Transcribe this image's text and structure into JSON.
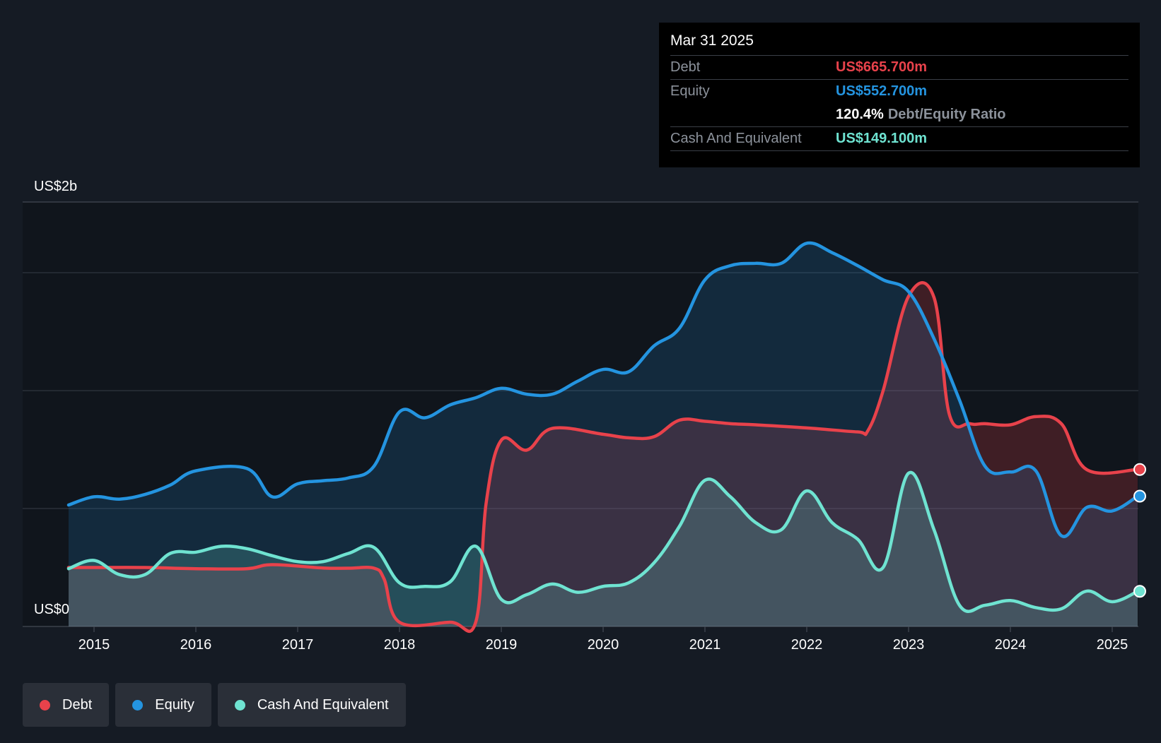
{
  "tooltip": {
    "date": "Mar 31 2025",
    "debt_label": "Debt",
    "debt_value": "US$665.700m",
    "equity_label": "Equity",
    "equity_value": "US$552.700m",
    "ratio_value": "120.4%",
    "ratio_label": "Debt/Equity Ratio",
    "cash_label": "Cash And Equivalent",
    "cash_value": "US$149.100m"
  },
  "legend": {
    "debt": "Debt",
    "equity": "Equity",
    "cash": "Cash And Equivalent"
  },
  "colors": {
    "debt": "#e8424b",
    "equity": "#2494e0",
    "cash": "#6fe3d1",
    "background": "#151b24",
    "plot_background": "#10151c"
  },
  "chart_data": {
    "type": "area",
    "ylabel_top": "US$2b",
    "ylabel_bottom": "US$0",
    "ylim": [
      0,
      1800
    ],
    "x_ticks": [
      "2015",
      "2016",
      "2017",
      "2018",
      "2019",
      "2020",
      "2021",
      "2022",
      "2023",
      "2024",
      "2025"
    ],
    "gridlines_musd": [
      500,
      1000,
      1500
    ],
    "series": [
      {
        "name": "Debt",
        "points": [
          [
            2014.75,
            250
          ],
          [
            2015.0,
            250
          ],
          [
            2015.5,
            250
          ],
          [
            2016.0,
            245
          ],
          [
            2016.5,
            245
          ],
          [
            2016.75,
            262
          ],
          [
            2017.25,
            248
          ],
          [
            2017.5,
            247
          ],
          [
            2017.75,
            247
          ],
          [
            2017.85,
            200
          ],
          [
            2018.0,
            18
          ],
          [
            2018.5,
            18
          ],
          [
            2018.75,
            20
          ],
          [
            2018.85,
            520
          ],
          [
            2019.0,
            790
          ],
          [
            2019.25,
            748
          ],
          [
            2019.5,
            840
          ],
          [
            2020.0,
            815
          ],
          [
            2020.25,
            800
          ],
          [
            2020.5,
            805
          ],
          [
            2020.75,
            875
          ],
          [
            2021.0,
            870
          ],
          [
            2021.25,
            860
          ],
          [
            2021.5,
            855
          ],
          [
            2022.0,
            842
          ],
          [
            2022.5,
            825
          ],
          [
            2022.6,
            830
          ],
          [
            2022.75,
            1000
          ],
          [
            2023.0,
            1400
          ],
          [
            2023.25,
            1395
          ],
          [
            2023.4,
            900
          ],
          [
            2023.6,
            860
          ],
          [
            2023.75,
            860
          ],
          [
            2024.0,
            855
          ],
          [
            2024.25,
            890
          ],
          [
            2024.5,
            860
          ],
          [
            2024.75,
            665
          ],
          [
            2025.25,
            665.7
          ]
        ]
      },
      {
        "name": "Equity",
        "points": [
          [
            2014.75,
            515
          ],
          [
            2015.0,
            550
          ],
          [
            2015.25,
            540
          ],
          [
            2015.5,
            560
          ],
          [
            2015.75,
            600
          ],
          [
            2016.0,
            660
          ],
          [
            2016.5,
            670
          ],
          [
            2016.75,
            550
          ],
          [
            2017.0,
            605
          ],
          [
            2017.25,
            618
          ],
          [
            2017.5,
            630
          ],
          [
            2017.75,
            680
          ],
          [
            2018.0,
            910
          ],
          [
            2018.25,
            885
          ],
          [
            2018.5,
            940
          ],
          [
            2018.75,
            970
          ],
          [
            2019.0,
            1010
          ],
          [
            2019.25,
            985
          ],
          [
            2019.5,
            985
          ],
          [
            2019.75,
            1040
          ],
          [
            2020.0,
            1090
          ],
          [
            2020.25,
            1080
          ],
          [
            2020.5,
            1190
          ],
          [
            2020.75,
            1265
          ],
          [
            2021.0,
            1470
          ],
          [
            2021.25,
            1530
          ],
          [
            2021.5,
            1540
          ],
          [
            2021.75,
            1540
          ],
          [
            2022.0,
            1625
          ],
          [
            2022.25,
            1585
          ],
          [
            2022.5,
            1530
          ],
          [
            2022.75,
            1470
          ],
          [
            2023.0,
            1420
          ],
          [
            2023.25,
            1220
          ],
          [
            2023.5,
            960
          ],
          [
            2023.75,
            680
          ],
          [
            2024.0,
            655
          ],
          [
            2024.25,
            660
          ],
          [
            2024.5,
            385
          ],
          [
            2024.75,
            505
          ],
          [
            2025.0,
            490
          ],
          [
            2025.25,
            552.7
          ]
        ]
      },
      {
        "name": "Cash And Equivalent",
        "points": [
          [
            2014.75,
            245
          ],
          [
            2015.0,
            280
          ],
          [
            2015.25,
            220
          ],
          [
            2015.5,
            220
          ],
          [
            2015.75,
            310
          ],
          [
            2016.0,
            315
          ],
          [
            2016.25,
            340
          ],
          [
            2016.5,
            330
          ],
          [
            2016.75,
            300
          ],
          [
            2017.0,
            275
          ],
          [
            2017.25,
            275
          ],
          [
            2017.5,
            310
          ],
          [
            2017.75,
            335
          ],
          [
            2018.0,
            185
          ],
          [
            2018.25,
            170
          ],
          [
            2018.5,
            190
          ],
          [
            2018.75,
            340
          ],
          [
            2019.0,
            115
          ],
          [
            2019.25,
            135
          ],
          [
            2019.5,
            180
          ],
          [
            2019.75,
            145
          ],
          [
            2020.0,
            170
          ],
          [
            2020.25,
            185
          ],
          [
            2020.5,
            270
          ],
          [
            2020.75,
            425
          ],
          [
            2021.0,
            620
          ],
          [
            2021.25,
            550
          ],
          [
            2021.5,
            440
          ],
          [
            2021.75,
            410
          ],
          [
            2022.0,
            575
          ],
          [
            2022.25,
            440
          ],
          [
            2022.5,
            370
          ],
          [
            2022.75,
            250
          ],
          [
            2023.0,
            650
          ],
          [
            2023.25,
            410
          ],
          [
            2023.5,
            90
          ],
          [
            2023.75,
            90
          ],
          [
            2024.0,
            110
          ],
          [
            2024.25,
            80
          ],
          [
            2024.5,
            75
          ],
          [
            2024.75,
            150
          ],
          [
            2025.0,
            105
          ],
          [
            2025.25,
            149.1
          ]
        ]
      }
    ]
  }
}
